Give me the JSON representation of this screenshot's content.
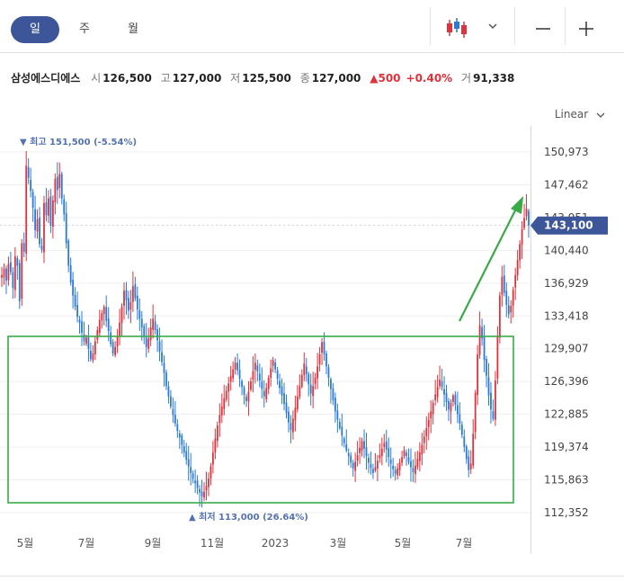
{
  "toolbar": {
    "periods": [
      "일",
      "주",
      "월"
    ],
    "active_period": "일",
    "chart_type_icon": "candlestick-icon",
    "dropdown_icon": "chevron-down-icon",
    "zoom_out_icon": "minus-icon",
    "zoom_in_icon": "plus-icon"
  },
  "quote": {
    "name": "삼성에스디에스",
    "open_label": "시",
    "open": "126,500",
    "high_label": "고",
    "high": "127,000",
    "low_label": "저",
    "low": "125,500",
    "close_label": "종",
    "close": "127,000",
    "change": "▲500",
    "change_pct": "+0.40%",
    "volume_label": "거",
    "volume": "91,338"
  },
  "scale_label": "Linear",
  "colors": {
    "up": "#e0323c",
    "down": "#2a7ad8",
    "accent": "#3d5699",
    "annotation": "#3aaa48"
  },
  "chart_data": {
    "type": "candlestick",
    "title": "",
    "y_ticks": [
      "150,973",
      "147,462",
      "143,951",
      "140,440",
      "136,929",
      "133,418",
      "129,907",
      "126,396",
      "122,885",
      "119,374",
      "115,863",
      "112,352"
    ],
    "y_tick_values": [
      150973,
      147462,
      143951,
      140440,
      136929,
      133418,
      129907,
      126396,
      122885,
      119374,
      115863,
      112352
    ],
    "ylim": [
      112352,
      150973
    ],
    "x_ticks": [
      "5월",
      "7월",
      "9월",
      "11월",
      "2023",
      "3월",
      "5월",
      "7월"
    ],
    "last_price": 143100,
    "last_price_label": "143,100",
    "high_annotation": "▼ 최고 151,500 (-5.54%)",
    "low_annotation": "▲ 최저 113,000 (26.64%)",
    "high_value": 151500,
    "low_value": 113000,
    "closes": [
      137800,
      138500,
      137200,
      139000,
      138100,
      136400,
      139800,
      138800,
      135000,
      141200,
      140300,
      149500,
      148200,
      146800,
      145000,
      142600,
      143800,
      141100,
      140500,
      145500,
      144200,
      146000,
      143100,
      145800,
      148100,
      146900,
      148600,
      146000,
      144300,
      141200,
      138800,
      137000,
      135600,
      134400,
      133300,
      132700,
      131600,
      130700,
      131100,
      129900,
      128800,
      129400,
      130700,
      131900,
      133000,
      133700,
      134400,
      132900,
      131800,
      130400,
      129400,
      130100,
      131200,
      132700,
      134400,
      136100,
      135100,
      134000,
      134900,
      136600,
      135300,
      134100,
      133100,
      132200,
      131100,
      130100,
      131000,
      132200,
      133100,
      131900,
      130800,
      129600,
      128500,
      127300,
      125900,
      124800,
      123700,
      122800,
      121900,
      121100,
      120400,
      119600,
      118800,
      118000,
      117300,
      116600,
      116000,
      115500,
      115000,
      114500,
      114100,
      114600,
      115200,
      116000,
      117300,
      118800,
      120300,
      121700,
      122800,
      123700,
      124600,
      125400,
      126200,
      127000,
      127700,
      128400,
      127600,
      126700,
      125800,
      125000,
      124300,
      125300,
      126400,
      127500,
      128400,
      127500,
      126500,
      125600,
      124800,
      125700,
      126800,
      127800,
      128700,
      127700,
      126700,
      125700,
      124900,
      124000,
      123000,
      122000,
      121200,
      122400,
      123600,
      124800,
      125900,
      127100,
      128300,
      127200,
      126100,
      125100,
      125900,
      126800,
      128000,
      129300,
      130600,
      129300,
      128000,
      126800,
      125600,
      124400,
      123200,
      122300,
      121400,
      120600,
      119800,
      119000,
      118400,
      117700,
      117100,
      117800,
      118500,
      119300,
      120000,
      119200,
      118400,
      117700,
      117100,
      116600,
      117200,
      117900,
      118500,
      119200,
      119800,
      119100,
      118300,
      117600,
      117000,
      116500,
      117100,
      117700,
      118300,
      119000,
      118400,
      117800,
      117200,
      116700,
      117400,
      118100,
      118800,
      119600,
      120500,
      121400,
      122300,
      123200,
      124100,
      125000,
      125800,
      126600,
      125800,
      125000,
      124200,
      123400,
      124100,
      124900,
      123900,
      122900,
      121900,
      120700,
      119400,
      118100,
      116900,
      117600,
      120800,
      125200,
      129300,
      132400,
      131000,
      128700,
      127000,
      124900,
      123400,
      122400,
      126500,
      131300,
      135600,
      137600,
      135900,
      134600,
      133600,
      134500,
      136200,
      137800,
      139400,
      141100,
      142700,
      143900,
      144900,
      143100
    ]
  },
  "annotation": {
    "shape": "rectangle+arrow",
    "description": "green box over consolidation range and green up arrow"
  }
}
